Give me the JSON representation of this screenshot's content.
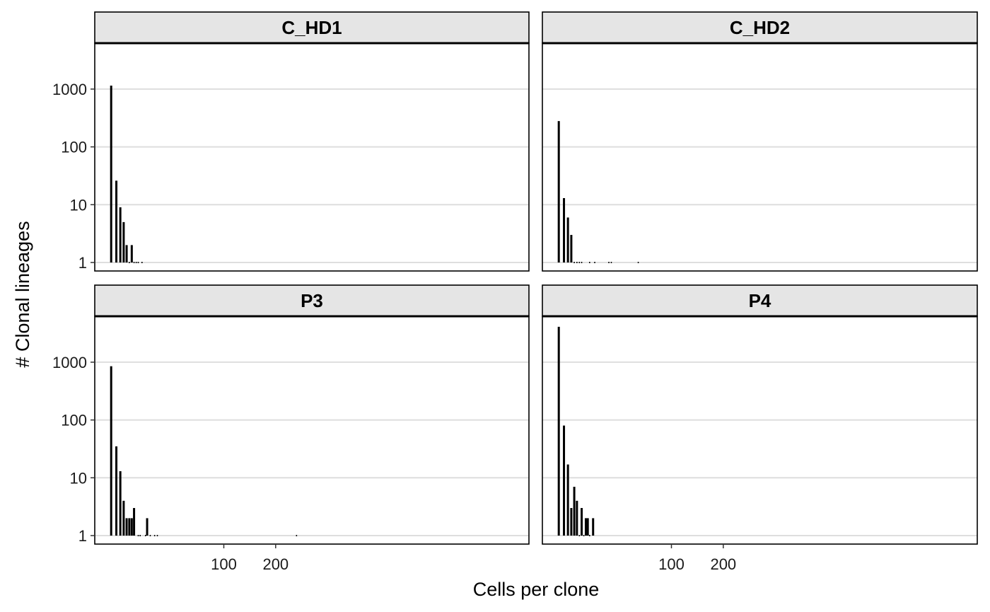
{
  "chart_data": {
    "type": "bar",
    "xlabel": "Cells per clone",
    "ylabel": "# Clonal lineages",
    "y_scale": "log10",
    "ylim": [
      1,
      6000
    ],
    "yticks": [
      1,
      10,
      100,
      1000
    ],
    "ytick_labels": [
      "1",
      "10",
      "100",
      "1000"
    ],
    "x_scale": "sqrt",
    "xlim": [
      0,
      260
    ],
    "xticks": [
      100,
      200
    ],
    "xtick_labels": [
      "100",
      "200"
    ],
    "grid": "horizontal major",
    "facets": [
      {
        "name": "C_HD1",
        "x": [
          1,
          2,
          3,
          4,
          5,
          6,
          7,
          8,
          9,
          10,
          12
        ],
        "values": [
          1150,
          26,
          9,
          5,
          2,
          1,
          2,
          1,
          1,
          1,
          1
        ]
      },
      {
        "name": "C_HD2",
        "x": [
          1,
          2,
          3,
          4,
          5,
          6,
          7,
          8,
          12,
          15,
          25,
          27,
          54
        ],
        "values": [
          280,
          13,
          6,
          3,
          1,
          1,
          1,
          1,
          1,
          1,
          1,
          1,
          1
        ]
      },
      {
        "name": "P3",
        "x": [
          1,
          2,
          3,
          4,
          5,
          6,
          7,
          8,
          10,
          11,
          14,
          15,
          17,
          20,
          22,
          250
        ],
        "values": [
          850,
          35,
          13,
          4,
          2,
          2,
          2,
          3,
          1,
          1,
          1,
          2,
          1,
          1,
          1,
          1
        ]
      },
      {
        "name": "P4",
        "x": [
          1,
          2,
          3,
          4,
          5,
          6,
          7,
          8,
          9,
          10,
          11,
          12,
          14
        ],
        "values": [
          4100,
          80,
          17,
          3,
          7,
          4,
          1,
          3,
          1,
          2,
          2,
          1,
          2
        ]
      }
    ]
  }
}
